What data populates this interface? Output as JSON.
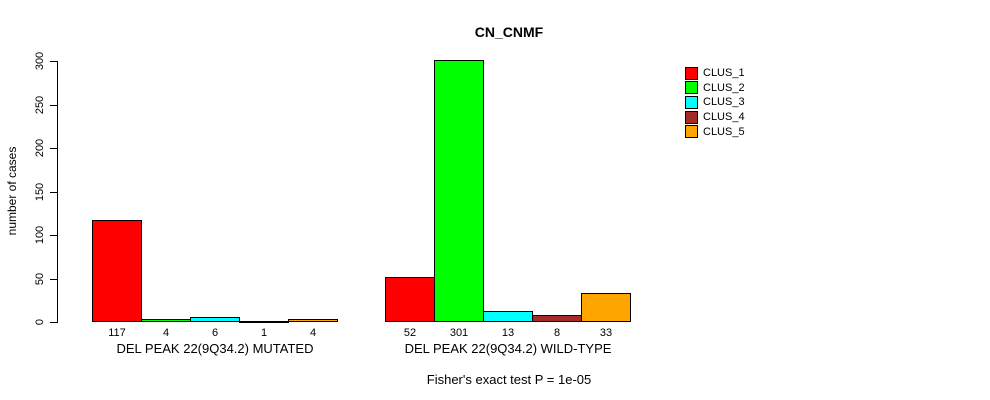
{
  "figure": {
    "background": "#ffffff",
    "border_color": "#000000"
  },
  "chart_data": {
    "type": "bar",
    "title": "CN_CNMF",
    "xlabel": "",
    "ylabel": "number of cases",
    "ylim": [
      0,
      300
    ],
    "yticks": [
      0,
      50,
      100,
      150,
      200,
      250,
      300
    ],
    "grid": false,
    "show_value_labels": true,
    "legend_position": "right-outside-top",
    "categories": [
      "DEL PEAK 22(9Q34.2) MUTATED",
      "DEL PEAK 22(9Q34.2) WILD-TYPE"
    ],
    "series": [
      {
        "name": "CLUS_1",
        "color": "#ff0000",
        "values": [
          117,
          52
        ]
      },
      {
        "name": "CLUS_2",
        "color": "#00ff00",
        "values": [
          4,
          301
        ]
      },
      {
        "name": "CLUS_3",
        "color": "#00ffff",
        "values": [
          6,
          13
        ]
      },
      {
        "name": "CLUS_4",
        "color": "#a52a2a",
        "values": [
          1,
          8
        ]
      },
      {
        "name": "CLUS_5",
        "color": "#ffa500",
        "values": [
          4,
          33
        ]
      }
    ],
    "footnote": "Fisher's exact test P = 1e-05"
  }
}
